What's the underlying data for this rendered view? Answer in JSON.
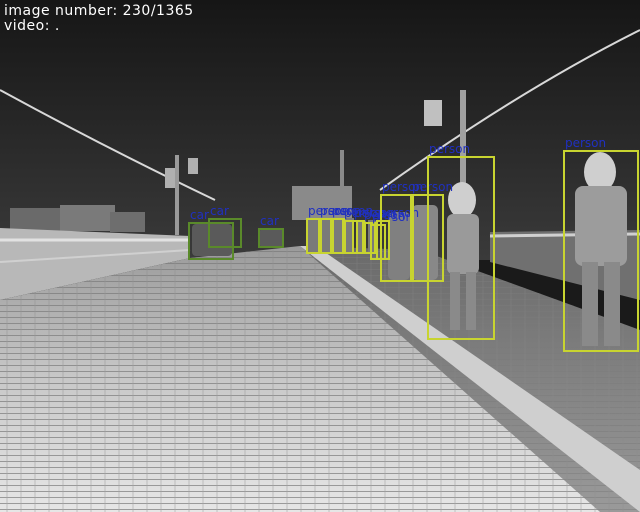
{
  "hud": {
    "image_counter": "image number: 230/1365",
    "video_line": "video: ."
  },
  "colors": {
    "person_box": "#c8d430",
    "car_box": "#5a8a2a",
    "label_text": "#2030c0",
    "hud_text": "#ffffff"
  },
  "detections": [
    {
      "label": "car",
      "kind": "car"
    },
    {
      "label": "car",
      "kind": "car"
    },
    {
      "label": "car",
      "kind": "car"
    },
    {
      "label": "person",
      "kind": "person"
    },
    {
      "label": "person",
      "kind": "person"
    },
    {
      "label": "person",
      "kind": "person"
    },
    {
      "label": "person",
      "kind": "person"
    },
    {
      "label": "person",
      "kind": "person"
    },
    {
      "label": "person",
      "kind": "person"
    },
    {
      "label": "person",
      "kind": "person"
    },
    {
      "label": "person",
      "kind": "person"
    },
    {
      "label": "person",
      "kind": "person"
    },
    {
      "label": "person",
      "kind": "person"
    },
    {
      "label": "person",
      "kind": "person"
    },
    {
      "label": "person",
      "kind": "person"
    }
  ]
}
